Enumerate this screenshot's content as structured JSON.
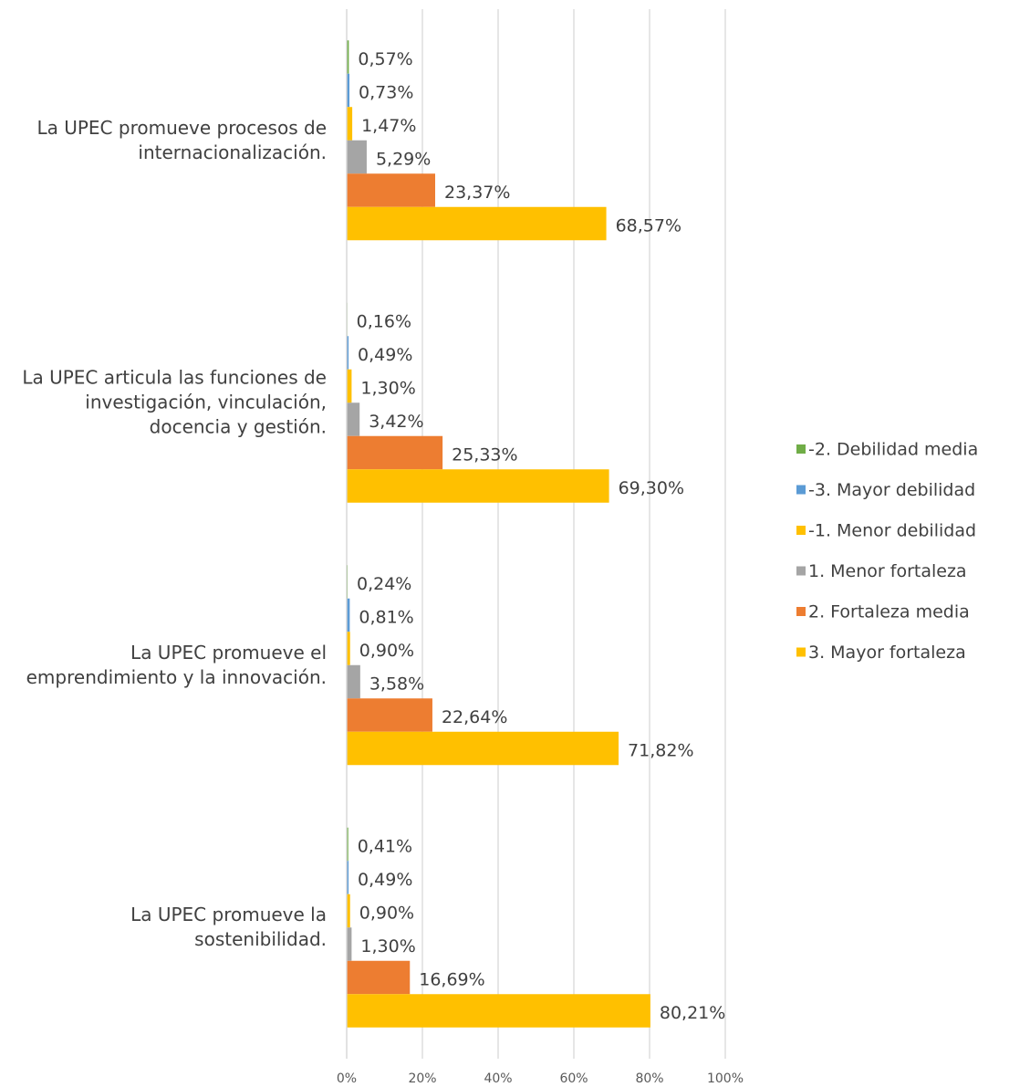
{
  "chart_data": {
    "type": "barh",
    "categories": [
      "La UPEC  promueve procesos de internacionalización.",
      "La UPEC articula las funciones de investigación, vinculación, docencia y gestión.",
      "La UPEC promueve el emprendimiento y la innovación.",
      "La UPEC promueve la sostenibilidad."
    ],
    "series": [
      {
        "name": "-2. Debilidad media",
        "color": "#70ad47",
        "values": [
          0.57,
          0.16,
          0.24,
          0.41
        ],
        "value_labels": [
          "0,57%",
          "0,16%",
          "0,24%",
          "0,41%"
        ]
      },
      {
        "name": "-3. Mayor debilidad",
        "color": "#5b9bd5",
        "values": [
          0.73,
          0.49,
          0.81,
          0.49
        ],
        "value_labels": [
          "0,73%",
          "0,49%",
          "0,81%",
          "0,49%"
        ]
      },
      {
        "name": "-1. Menor debilidad",
        "color": "#ffc000",
        "values": [
          1.47,
          1.3,
          0.9,
          0.9
        ],
        "value_labels": [
          "1,47%",
          "1,30%",
          "0,90%",
          "0,90%"
        ]
      },
      {
        "name": "1. Menor fortaleza",
        "color": "#a5a5a5",
        "values": [
          5.29,
          3.42,
          3.58,
          1.3
        ],
        "value_labels": [
          "5,29%",
          "3,42%",
          "3,58%",
          "1,30%"
        ]
      },
      {
        "name": "2. Fortaleza media",
        "color": "#ed7d31",
        "values": [
          23.37,
          25.33,
          22.64,
          16.69
        ],
        "value_labels": [
          "23,37%",
          "25,33%",
          "22,64%",
          "16,69%"
        ]
      },
      {
        "name": "3. Mayor fortaleza",
        "color": "#ffc000",
        "values": [
          68.57,
          69.3,
          71.82,
          80.21
        ],
        "value_labels": [
          "68,57%",
          "69,30%",
          "71,82%",
          "80,21%"
        ]
      }
    ],
    "xlim": [
      0,
      100
    ],
    "xticks": [
      {
        "value": 0,
        "label": "0%"
      },
      {
        "value": 20,
        "label": "20%"
      },
      {
        "value": 40,
        "label": "40%"
      },
      {
        "value": 60,
        "label": "60%"
      },
      {
        "value": 80,
        "label": "80%"
      },
      {
        "value": 100,
        "label": "100%"
      }
    ],
    "grid": true,
    "legend": "right"
  }
}
